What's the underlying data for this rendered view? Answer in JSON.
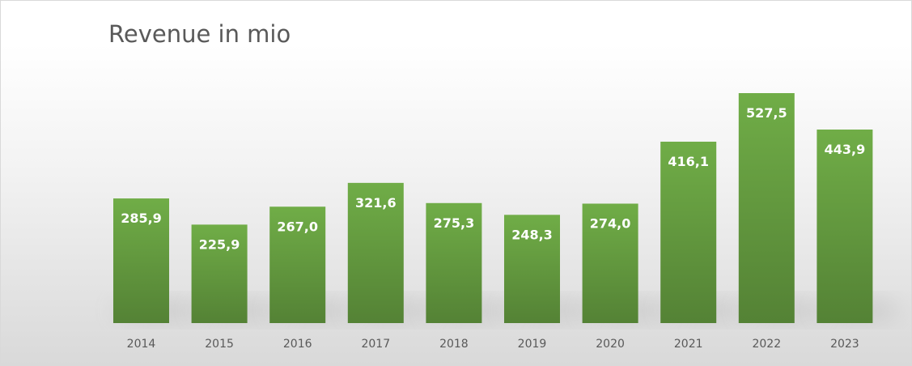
{
  "chart_data": {
    "type": "bar",
    "title": "Revenue in mio",
    "xlabel": "",
    "ylabel": "",
    "categories": [
      "2014",
      "2015",
      "2016",
      "2017",
      "2018",
      "2019",
      "2020",
      "2021",
      "2022",
      "2023"
    ],
    "values": [
      285.9,
      225.9,
      267.0,
      321.6,
      275.3,
      248.3,
      274.0,
      416.1,
      527.5,
      443.9
    ],
    "data_labels": [
      "285,9",
      "225,9",
      "267,0",
      "321,6",
      "275,3",
      "248,3",
      "274,0",
      "416,1",
      "527,5",
      "443,9"
    ],
    "ylim": [
      0,
      527.5
    ],
    "grid": false,
    "legend": "none",
    "colors": {
      "bar_top": "#70ad47",
      "bar_bottom": "#548235",
      "label_inside": "#ffffff",
      "axis_text": "#595959",
      "title_text": "#595959"
    }
  }
}
